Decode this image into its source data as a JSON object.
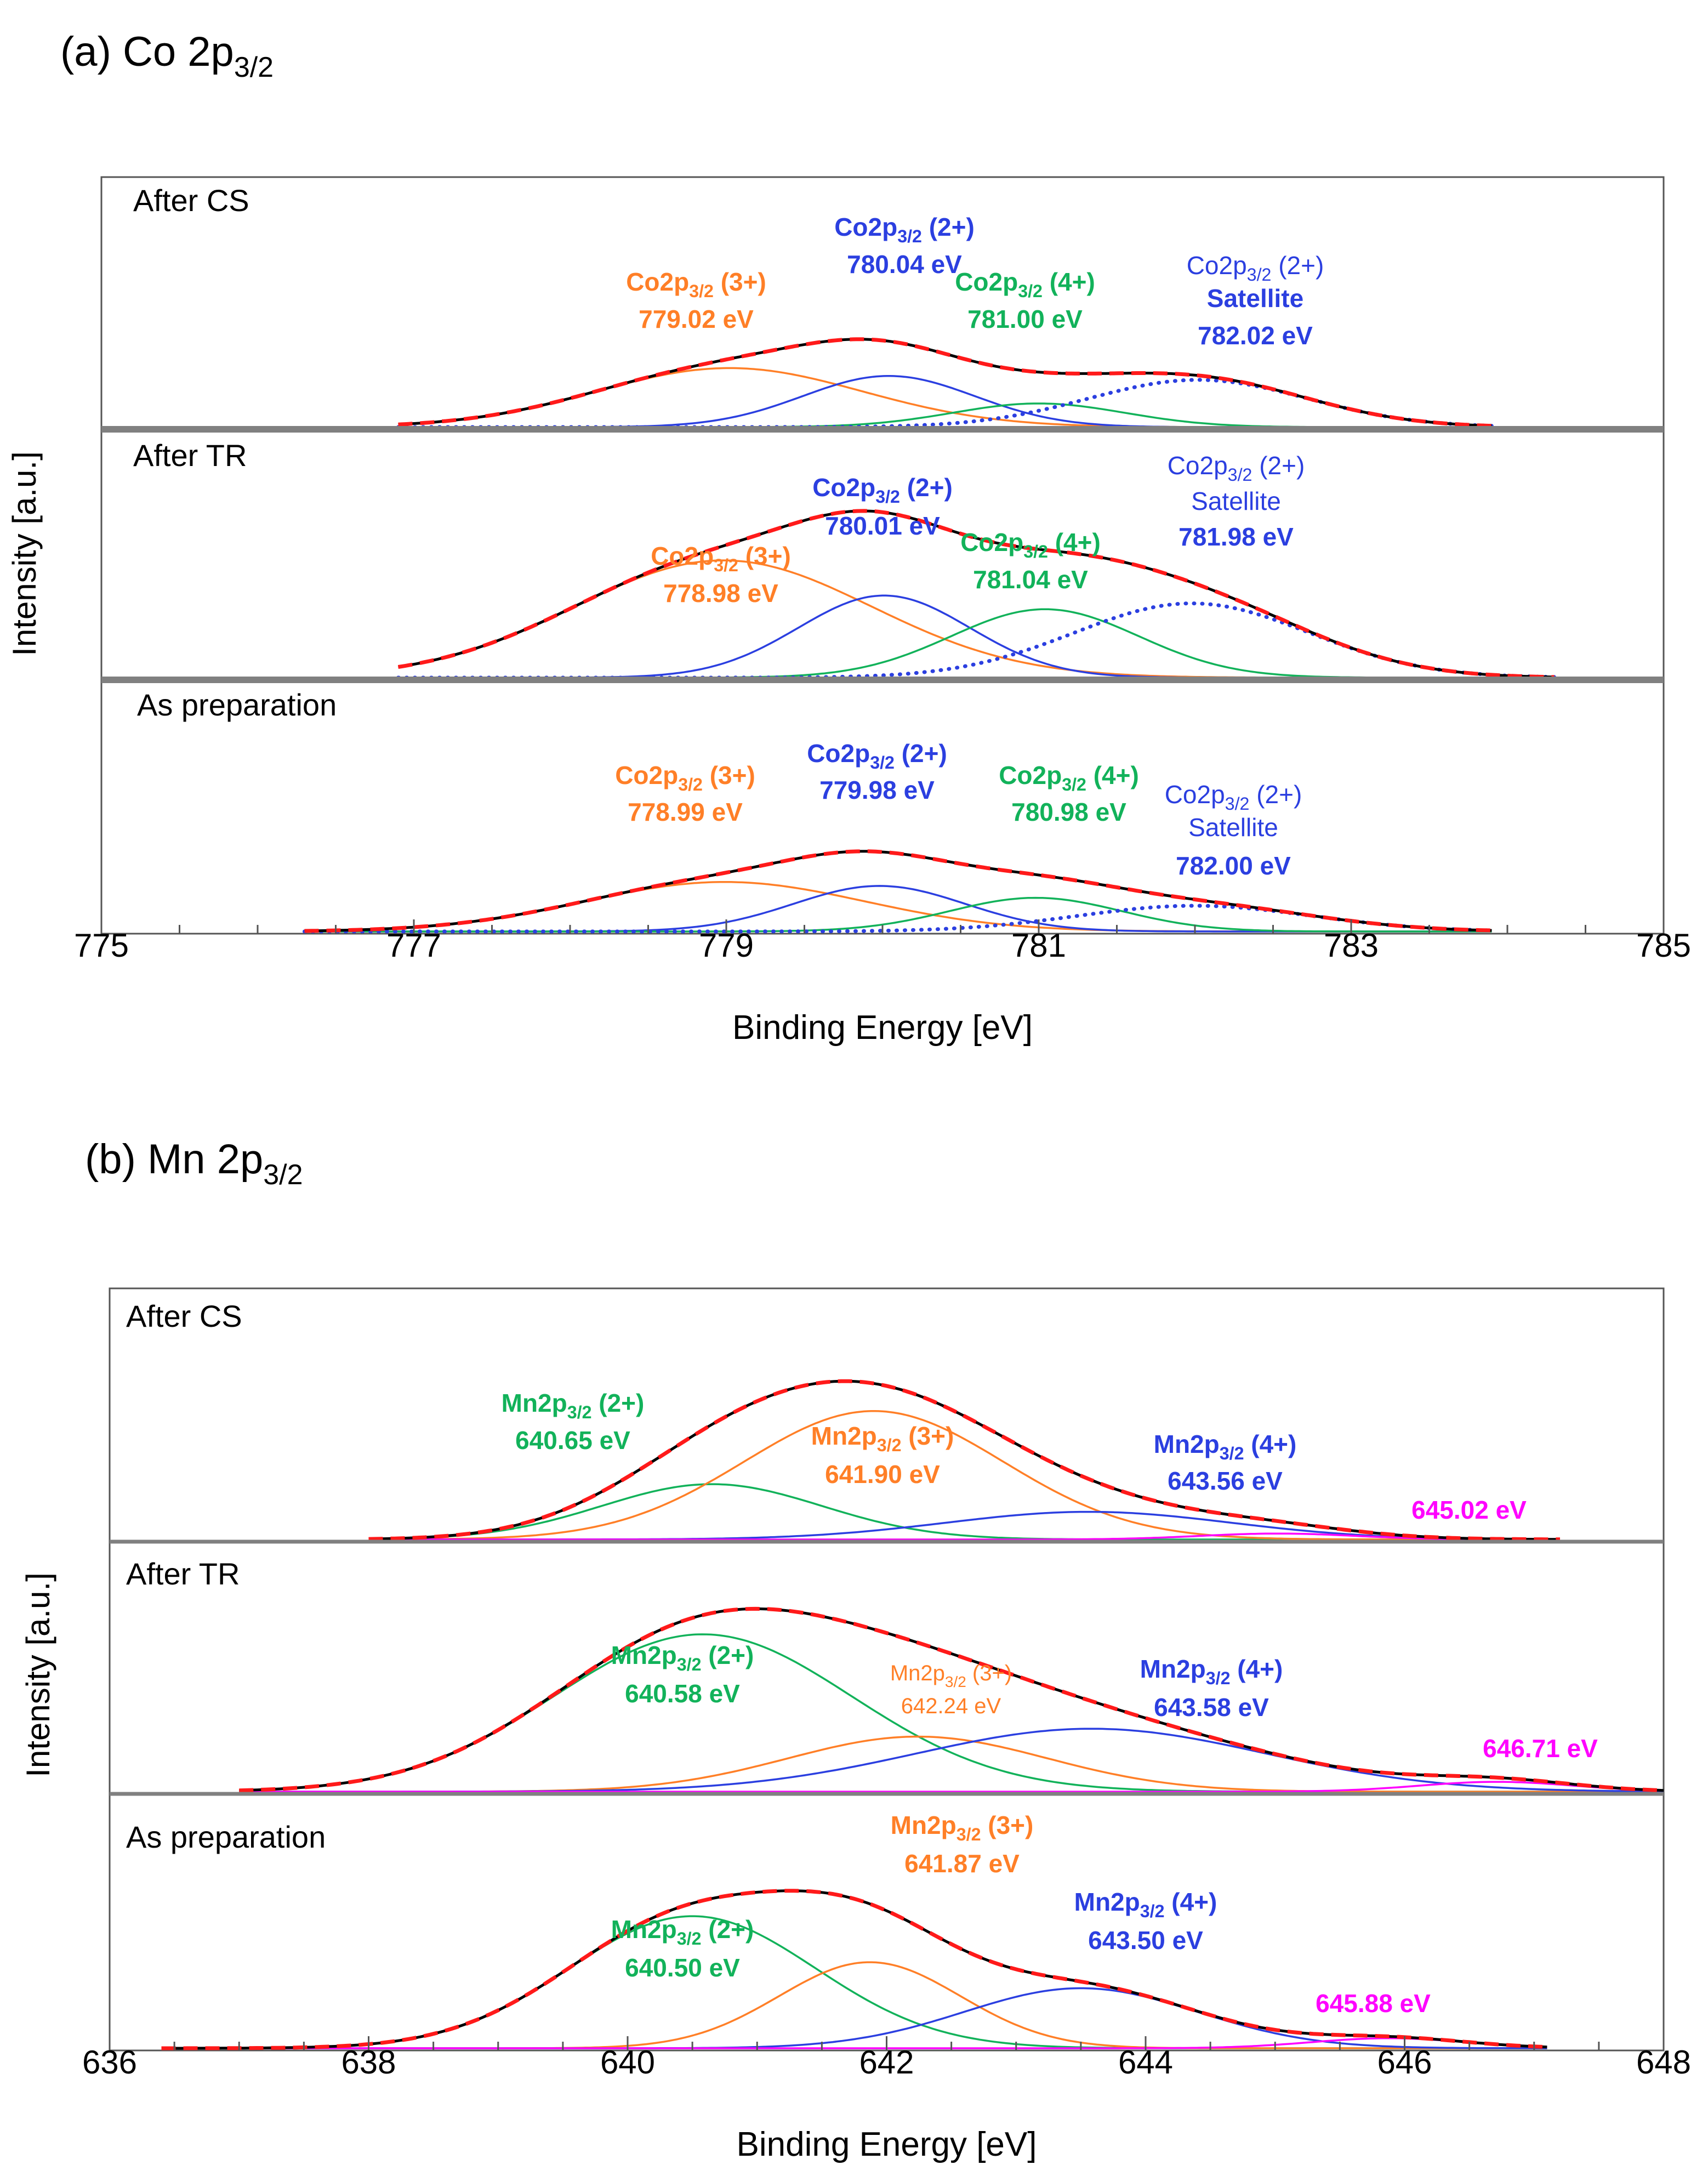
{
  "chart_data": [
    {
      "type": "line",
      "title_main": "(a) Co 2p",
      "title_sub": "3/2",
      "xlabel": "Binding Energy [eV]",
      "ylabel": "Intensity [a.u.]",
      "xlim": [
        775,
        785
      ],
      "xticks": [
        "775",
        "777",
        "779",
        "781",
        "783",
        "785"
      ],
      "colors": {
        "envelope": "#000000",
        "fit": "#ff1a1a",
        "c3": "#ff7f27",
        "c2": "#2b3fe0",
        "c4": "#12b25a",
        "sat": "#2b3fe0",
        "c6": "#ff00ff"
      },
      "panels": [
        {
          "name": "After CS",
          "xrange": [
            776.9,
            783.9
          ],
          "peaks": [
            {
              "key": "c3",
              "pos": 779.02,
              "height": 0.3,
              "sigma": 0.85,
              "label": "Co2p",
              "sub": "3/2",
              "ox": "(3+)",
              "energy": "779.02 eV"
            },
            {
              "key": "c2",
              "pos": 780.04,
              "height": 0.26,
              "sigma": 0.55,
              "label": "Co2p",
              "sub": "3/2",
              "ox": "(2+)",
              "energy": "780.04 eV"
            },
            {
              "key": "c4",
              "pos": 781.0,
              "height": 0.12,
              "sigma": 0.55,
              "label": "Co2p",
              "sub": "3/2",
              "ox": "(4+)",
              "energy": "781.00 eV"
            },
            {
              "key": "sat",
              "pos": 782.02,
              "height": 0.24,
              "sigma": 0.7,
              "label": "Co2p",
              "sub": "3/2",
              "ox": "(2+)",
              "extra": "Satellite",
              "energy": "782.02 eV",
              "dotted": true
            }
          ]
        },
        {
          "name": "After TR",
          "xrange": [
            776.9,
            784.3
          ],
          "peaks": [
            {
              "key": "c3",
              "pos": 778.98,
              "height": 0.6,
              "sigma": 0.95,
              "label": "Co2p",
              "sub": "3/2",
              "ox": "(3+)",
              "energy": "778.98 eV"
            },
            {
              "key": "c2",
              "pos": 780.01,
              "height": 0.42,
              "sigma": 0.55,
              "label": "Co2p",
              "sub": "3/2",
              "ox": "(2+)",
              "energy": "780.01 eV"
            },
            {
              "key": "c4",
              "pos": 781.04,
              "height": 0.35,
              "sigma": 0.6,
              "label": "Co2p",
              "sub": "3/2",
              "ox": "(4+)",
              "energy": "781.04 eV"
            },
            {
              "key": "sat",
              "pos": 781.98,
              "height": 0.38,
              "sigma": 0.75,
              "label": "Co2p",
              "sub": "3/2",
              "ox": "(2+)",
              "extra": "Satellite",
              "energy": "781.98 eV",
              "dotted": true
            }
          ]
        },
        {
          "name": "As preparation",
          "xrange": [
            776.3,
            783.9
          ],
          "peaks": [
            {
              "key": "c3",
              "pos": 778.99,
              "height": 0.25,
              "sigma": 0.9,
              "label": "Co2p",
              "sub": "3/2",
              "ox": "(3+)",
              "energy": "778.99 eV"
            },
            {
              "key": "c2",
              "pos": 779.98,
              "height": 0.23,
              "sigma": 0.55,
              "label": "Co2p",
              "sub": "3/2",
              "ox": "(2+)",
              "energy": "779.98 eV"
            },
            {
              "key": "c4",
              "pos": 780.98,
              "height": 0.17,
              "sigma": 0.55,
              "label": "Co2p",
              "sub": "3/2",
              "ox": "(4+)",
              "energy": "780.98 eV"
            },
            {
              "key": "sat",
              "pos": 782.0,
              "height": 0.13,
              "sigma": 0.75,
              "label": "Co2p",
              "sub": "3/2",
              "ox": "(2+)",
              "extra": "Satellite",
              "energy": "782.00 eV",
              "dotted": true
            }
          ]
        }
      ]
    },
    {
      "type": "line",
      "title_main": "(b) Mn 2p",
      "title_sub": "3/2",
      "xlabel": "Binding Energy [eV]",
      "ylabel": "Intensity [a.u.]",
      "xlim": [
        636,
        648
      ],
      "xticks": [
        "636",
        "638",
        "640",
        "642",
        "644",
        "646",
        "648"
      ],
      "colors": {
        "envelope": "#000000",
        "fit": "#ff1a1a",
        "c3": "#ff7f27",
        "c2": "#12b25a",
        "c4": "#2b3fe0",
        "c6": "#ff00ff"
      },
      "panels": [
        {
          "name": "After CS",
          "xrange": [
            638.0,
            647.2
          ],
          "peaks": [
            {
              "key": "c2",
              "pos": 640.65,
              "height": 0.28,
              "sigma": 0.85,
              "label": "Mn2p",
              "sub": "3/2",
              "ox": "(2+)",
              "energy": "640.65 eV"
            },
            {
              "key": "c3",
              "pos": 641.9,
              "height": 0.65,
              "sigma": 1.0,
              "label": "Mn2p",
              "sub": "3/2",
              "ox": "(3+)",
              "energy": "641.90 eV"
            },
            {
              "key": "c4",
              "pos": 643.56,
              "height": 0.14,
              "sigma": 1.1,
              "label": "Mn2p",
              "sub": "3/2",
              "ox": "(4+)",
              "energy": "643.56 eV"
            },
            {
              "key": "c6",
              "pos": 645.02,
              "height": 0.03,
              "sigma": 0.6,
              "energy": "645.02 eV"
            }
          ]
        },
        {
          "name": "After TR",
          "xrange": [
            637.0,
            648.0
          ],
          "peaks": [
            {
              "key": "c2",
              "pos": 640.58,
              "height": 0.8,
              "sigma": 1.15,
              "label": "Mn2p",
              "sub": "3/2",
              "ox": "(2+)",
              "energy": "640.58 eV"
            },
            {
              "key": "c3",
              "pos": 642.24,
              "height": 0.28,
              "sigma": 1.0,
              "label": "Mn2p",
              "sub": "3/2",
              "ox": "(3+)",
              "energy": "642.24 eV"
            },
            {
              "key": "c4",
              "pos": 643.58,
              "height": 0.32,
              "sigma": 1.35,
              "label": "Mn2p",
              "sub": "3/2",
              "ox": "(4+)",
              "energy": "643.58 eV"
            },
            {
              "key": "c6",
              "pos": 646.71,
              "height": 0.05,
              "sigma": 0.6,
              "energy": "646.71 eV"
            }
          ]
        },
        {
          "name": "As preparation",
          "xrange": [
            636.4,
            647.1
          ],
          "peaks": [
            {
              "key": "c2",
              "pos": 640.5,
              "height": 0.66,
              "sigma": 0.95,
              "label": "Mn2p",
              "sub": "3/2",
              "ox": "(2+)",
              "energy": "640.50 eV"
            },
            {
              "key": "c3",
              "pos": 641.87,
              "height": 0.43,
              "sigma": 0.7,
              "label": "Mn2p",
              "sub": "3/2",
              "ox": "(3+)",
              "energy": "641.87 eV"
            },
            {
              "key": "c4",
              "pos": 643.5,
              "height": 0.3,
              "sigma": 0.9,
              "label": "Mn2p",
              "sub": "3/2",
              "ox": "(4+)",
              "energy": "643.50 eV"
            },
            {
              "key": "c6",
              "pos": 645.88,
              "height": 0.05,
              "sigma": 0.6,
              "energy": "645.88 eV"
            }
          ]
        }
      ]
    }
  ]
}
